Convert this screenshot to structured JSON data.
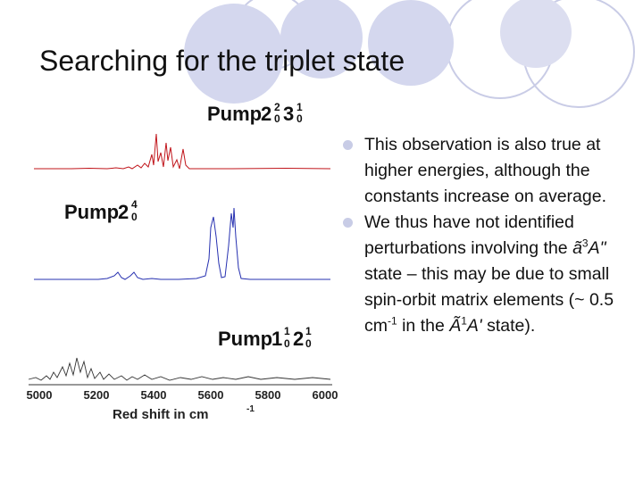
{
  "slide": {
    "title": "Searching for the triplet state"
  },
  "figure": {
    "panels": [
      {
        "label": "Pump",
        "vib": "2",
        "sup1": "2",
        "sub1": "0",
        "vib2": "3",
        "sup2": "1",
        "sub2": "0",
        "color": "#c0141a"
      },
      {
        "label": "Pump",
        "vib": "2",
        "sup1": "4",
        "sub1": "0",
        "color": "#2630b0"
      },
      {
        "label": "Pump",
        "vib": "1",
        "sup1": "1",
        "sub1": "0",
        "vib2": "2",
        "sup2": "1",
        "sub2": "0",
        "color": "#222222"
      }
    ],
    "x_ticks": [
      "5000",
      "5200",
      "5400",
      "5600",
      "5800",
      "6000"
    ],
    "xlabel_main": "Red shift in cm",
    "xlabel_exp": "-1"
  },
  "bullets": {
    "b1": "This observation is also true at higher energies, although the constants increase on average.",
    "b2_a": "We thus have not identified perturbations involving the",
    "b2_state1": "ã",
    "b2_state1_sup": "3",
    "b2_state1_sym": "A\"",
    "b2_b": "state – this may be due to small spin-orbit matrix elements (~ 0.5 cm",
    "b2_exp": "-1",
    "b2_c": "in the",
    "b2_state2": "Ã",
    "b2_state2_sup": "1",
    "b2_state2_sym": "A'",
    "b2_d": "state)."
  },
  "colors": {
    "circle_fill": "#d6d8ec",
    "circle_stroke": "#c8cbe4"
  }
}
